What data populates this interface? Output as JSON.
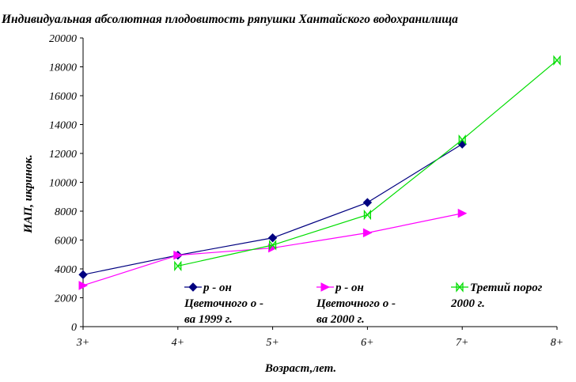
{
  "chart_data": {
    "type": "line",
    "title": "Индивидуальная абсолютная плодовитость ряпушки Хантайского водохранилища",
    "xlabel": "Возраст,лет.",
    "ylabel": "ИАП, икринок.",
    "categories": [
      "3+",
      "4+",
      "5+",
      "6+",
      "7+",
      "8+"
    ],
    "y_ticks": [
      "0",
      "2000",
      "4000",
      "6000",
      "8000",
      "10000",
      "12000",
      "14000",
      "16000",
      "18000",
      "20000"
    ],
    "ylim": [
      0,
      20000
    ],
    "grid": false,
    "legend_position": "bottom-inside",
    "series": [
      {
        "name_lines": [
          "р - он",
          "Цветочного о -",
          "ва 1999 г."
        ],
        "color": "#000080",
        "marker": "diamond",
        "values": [
          3600,
          4950,
          6150,
          8600,
          12650,
          null
        ]
      },
      {
        "name_lines": [
          "р - он",
          "Цветочного о -",
          "ва 2000 г."
        ],
        "color": "#ff00ff",
        "marker": "triangle-right",
        "values": [
          2850,
          4950,
          5450,
          6500,
          7850,
          null
        ]
      },
      {
        "name_lines": [
          "Третий порог",
          "2000 г."
        ],
        "color": "#00dd00",
        "marker": "bowtie",
        "values": [
          null,
          4200,
          5650,
          7750,
          12950,
          18450
        ]
      }
    ]
  }
}
